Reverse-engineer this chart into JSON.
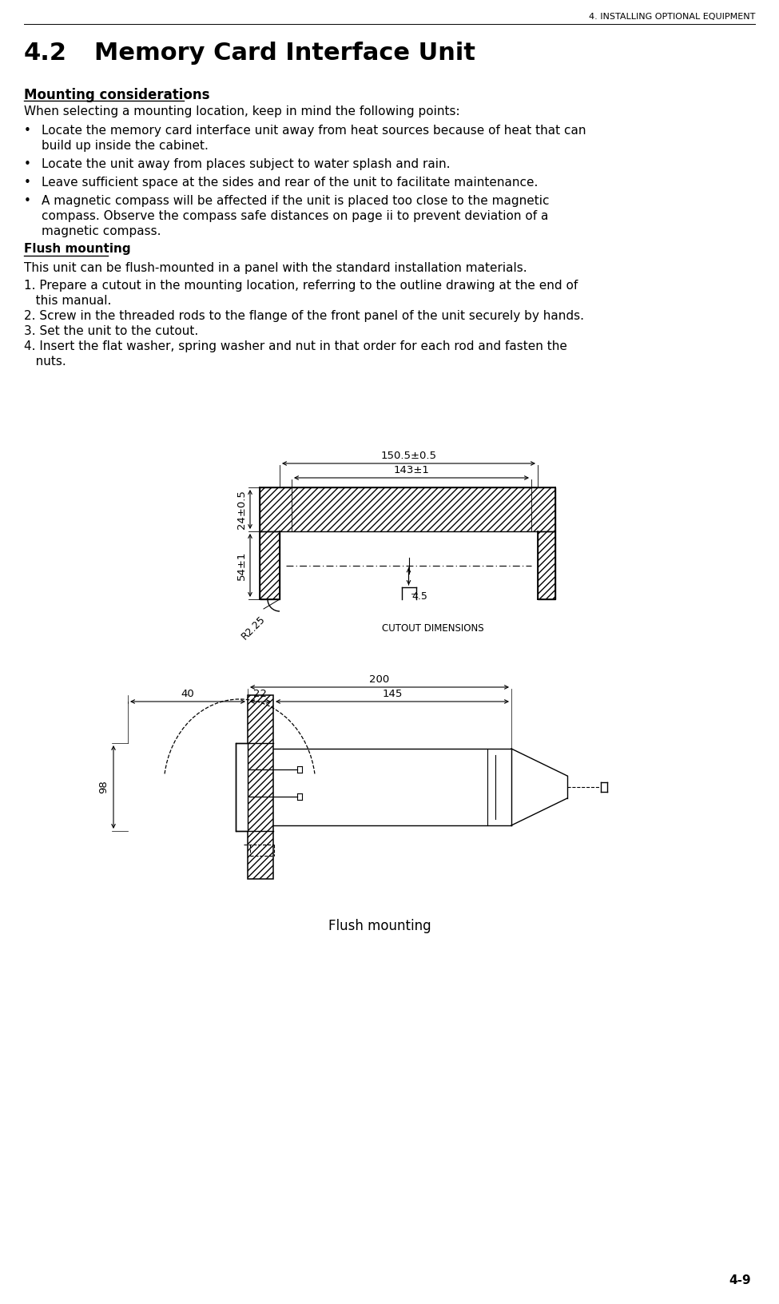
{
  "bg_color": "#ffffff",
  "text_color": "#000000",
  "header_text": "4. INSTALLING OPTIONAL EQUIPMENT",
  "section_num": "4.2",
  "section_title": "Memory Card Interface Unit",
  "subsection1": "Mounting considerations",
  "para1": "When selecting a mounting location, keep in mind the following points:",
  "bullet1_l1": "Locate the memory card interface unit away from heat sources because of heat that can",
  "bullet1_l2": "build up inside the cabinet.",
  "bullet2": "Locate the unit away from places subject to water splash and rain.",
  "bullet3": "Leave sufficient space at the sides and rear of the unit to facilitate maintenance.",
  "bullet4_l1": "A magnetic compass will be affected if the unit is placed too close to the magnetic",
  "bullet4_l2": "compass. Observe the compass safe distances on page ii to prevent deviation of a",
  "bullet4_l3": "magnetic compass.",
  "subsection2": "Flush mounting",
  "flush_intro": "This unit can be flush-mounted in a panel with the standard installation materials.",
  "step1_l1": "1. Prepare a cutout in the mounting location, referring to the outline drawing at the end of",
  "step1_l2": "   this manual.",
  "step2": "2. Screw in the threaded rods to the flange of the front panel of the unit securely by hands.",
  "step3": "3. Set the unit to the cutout.",
  "step4_l1": "4. Insert the flat washer, spring washer and nut in that order for each rod and fasten the",
  "step4_l2": "   nuts.",
  "cutout_label": "CUTOUT DIMENSIONS",
  "dim_150": "150.5±0.5",
  "dim_143": "143±1",
  "dim_24": "24±0.5",
  "dim_54": "54±1",
  "dim_r225": "R2.25",
  "dim_45": "4.5",
  "dim_200": "200",
  "dim_40": "40",
  "dim_22": "22",
  "dim_145": "145",
  "dim_98": "98",
  "flush_caption": "Flush mounting",
  "page_num": "4-9"
}
